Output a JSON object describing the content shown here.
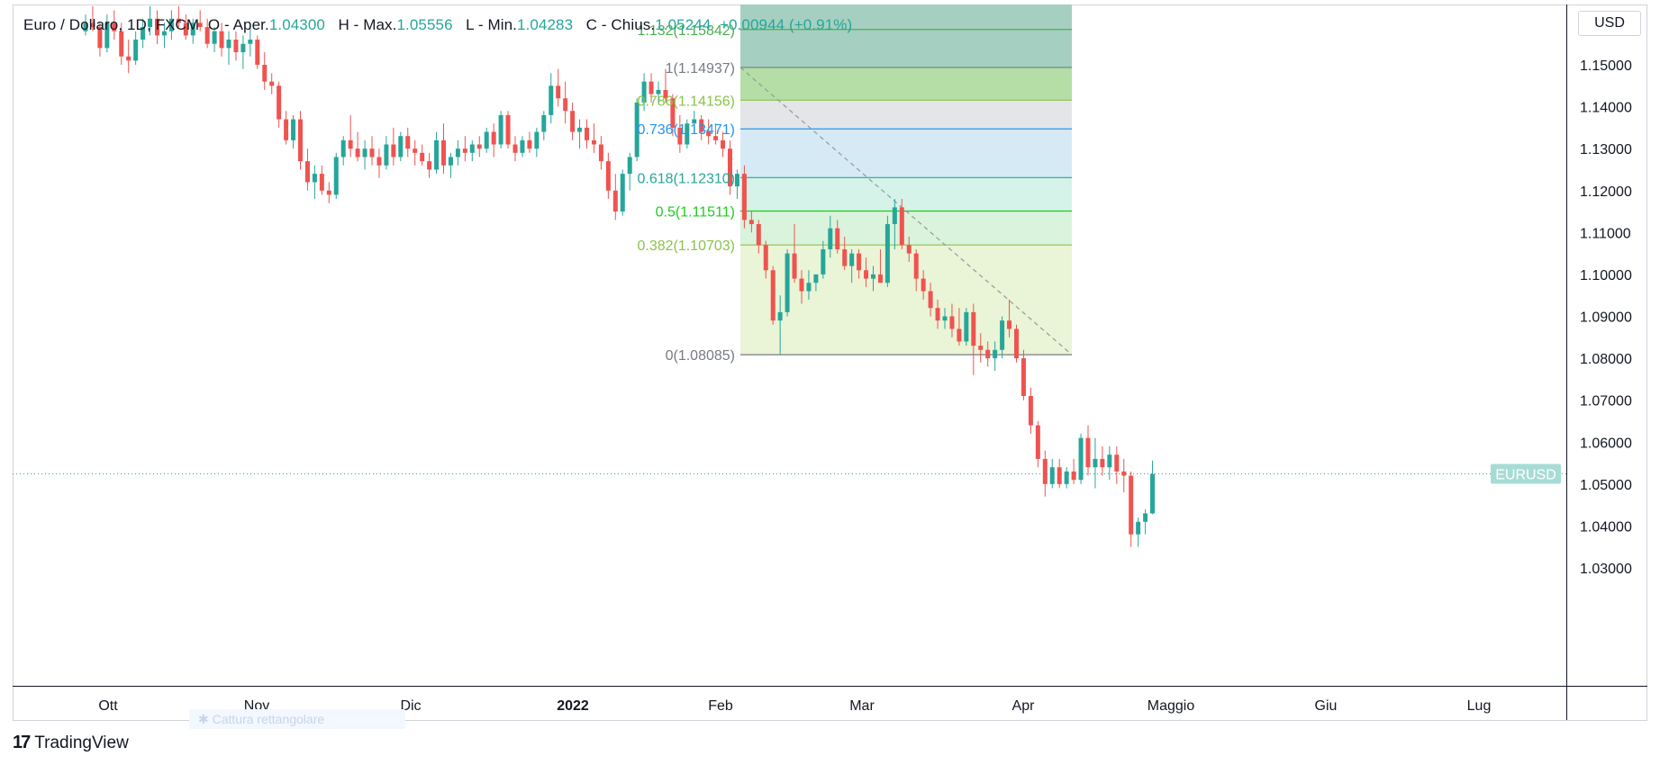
{
  "legend": {
    "symbol": "Euro / Dollaro",
    "interval": "1D",
    "exchange": "FXCM",
    "open_label": "O - Aper.",
    "open": "1.04300",
    "high_label": "H - Max.",
    "high": "1.05556",
    "low_label": "L - Min.",
    "low": "1.04283",
    "close_label": "C - Chius.",
    "close": "1.05244",
    "change": "+0.00944 (+0.91%)"
  },
  "currency_button": "USD",
  "price_tag": "EURUSD",
  "watermark": "Cattura rettangolare",
  "brand": "TradingView",
  "chart_data": {
    "type": "candlestick",
    "symbol": "EURUSD",
    "ylim": [
      1.025,
      1.162
    ],
    "yticks": [
      "1.15000",
      "1.14000",
      "1.13000",
      "1.12000",
      "1.11000",
      "1.10000",
      "1.09000",
      "1.08000",
      "1.07000",
      "1.06000",
      "1.05000",
      "1.04000",
      "1.03000"
    ],
    "xticks": [
      "Ott",
      "Nov",
      "Dic",
      "2022",
      "Feb",
      "Mar",
      "Apr",
      "Maggio",
      "Giu",
      "Lug"
    ],
    "last_price": 1.05244,
    "fibonacci": {
      "levels": [
        {
          "ratio": "1.132",
          "price": 1.15842,
          "label": "1.132(1.15842)",
          "color": "#4caf50",
          "fill": "#a5cfc0"
        },
        {
          "ratio": "1",
          "price": 1.14937,
          "label": "1(1.14937)",
          "color": "#787b86",
          "fill": "#b4dea5"
        },
        {
          "ratio": "0.786",
          "price": 1.14156,
          "label": "0.786(1.14156)",
          "color": "#8bc34a",
          "fill": "#e4e5e8"
        },
        {
          "ratio": "0.736",
          "price": 1.13471,
          "label": "0.736(1.13471)",
          "color": "#2196f3",
          "fill": "#d6eaf6"
        },
        {
          "ratio": "0.618",
          "price": 1.1231,
          "label": "0.618(1.12310)",
          "color": "#26a69a",
          "fill": "#d5f3e8"
        },
        {
          "ratio": "0.5",
          "price": 1.11511,
          "label": "0.5(1.11511)",
          "color": "#1ecc1e",
          "fill": "#daf3dc"
        },
        {
          "ratio": "0.382",
          "price": 1.10703,
          "label": "0.382(1.10703)",
          "color": "#8bc34a",
          "fill": "#eaf4d6"
        },
        {
          "ratio": "0",
          "price": 1.08085,
          "label": "0(1.08085)",
          "color": "#787b86",
          "fill": null
        }
      ]
    },
    "candles": [
      [
        1.158,
        1.162,
        1.157,
        1.16
      ],
      [
        1.16,
        1.164,
        1.158,
        1.159
      ],
      [
        1.159,
        1.16,
        1.152,
        1.154
      ],
      [
        1.154,
        1.162,
        1.153,
        1.16
      ],
      [
        1.16,
        1.163,
        1.156,
        1.158
      ],
      [
        1.158,
        1.16,
        1.15,
        1.152
      ],
      [
        1.152,
        1.156,
        1.148,
        1.151
      ],
      [
        1.151,
        1.158,
        1.15,
        1.156
      ],
      [
        1.156,
        1.161,
        1.154,
        1.159
      ],
      [
        1.159,
        1.164,
        1.157,
        1.161
      ],
      [
        1.161,
        1.163,
        1.155,
        1.157
      ],
      [
        1.157,
        1.16,
        1.154,
        1.158
      ],
      [
        1.158,
        1.163,
        1.156,
        1.161
      ],
      [
        1.161,
        1.164,
        1.159,
        1.16
      ],
      [
        1.16,
        1.162,
        1.156,
        1.157
      ],
      [
        1.157,
        1.161,
        1.155,
        1.16
      ],
      [
        1.16,
        1.163,
        1.158,
        1.159
      ],
      [
        1.159,
        1.161,
        1.154,
        1.155
      ],
      [
        1.155,
        1.159,
        1.153,
        1.158
      ],
      [
        1.158,
        1.16,
        1.152,
        1.154
      ],
      [
        1.154,
        1.158,
        1.15,
        1.156
      ],
      [
        1.156,
        1.158,
        1.151,
        1.153
      ],
      [
        1.153,
        1.157,
        1.149,
        1.155
      ],
      [
        1.155,
        1.159,
        1.152,
        1.156
      ],
      [
        1.156,
        1.157,
        1.149,
        1.15
      ],
      [
        1.15,
        1.153,
        1.144,
        1.146
      ],
      [
        1.146,
        1.148,
        1.143,
        1.145
      ],
      [
        1.145,
        1.146,
        1.135,
        1.137
      ],
      [
        1.137,
        1.139,
        1.131,
        1.132
      ],
      [
        1.132,
        1.138,
        1.13,
        1.137
      ],
      [
        1.137,
        1.139,
        1.125,
        1.127
      ],
      [
        1.127,
        1.13,
        1.12,
        1.122
      ],
      [
        1.122,
        1.126,
        1.118,
        1.124
      ],
      [
        1.124,
        1.126,
        1.119,
        1.12
      ],
      [
        1.12,
        1.122,
        1.117,
        1.119
      ],
      [
        1.119,
        1.129,
        1.118,
        1.128
      ],
      [
        1.128,
        1.133,
        1.126,
        1.132
      ],
      [
        1.132,
        1.138,
        1.128,
        1.13
      ],
      [
        1.13,
        1.134,
        1.127,
        1.128
      ],
      [
        1.128,
        1.132,
        1.125,
        1.13
      ],
      [
        1.13,
        1.133,
        1.126,
        1.128
      ],
      [
        1.128,
        1.13,
        1.123,
        1.126
      ],
      [
        1.126,
        1.133,
        1.125,
        1.131
      ],
      [
        1.131,
        1.135,
        1.126,
        1.128
      ],
      [
        1.128,
        1.134,
        1.127,
        1.133
      ],
      [
        1.133,
        1.135,
        1.128,
        1.13
      ],
      [
        1.13,
        1.132,
        1.126,
        1.129
      ],
      [
        1.129,
        1.131,
        1.126,
        1.127
      ],
      [
        1.127,
        1.129,
        1.123,
        1.125
      ],
      [
        1.125,
        1.134,
        1.124,
        1.132
      ],
      [
        1.132,
        1.136,
        1.124,
        1.126
      ],
      [
        1.126,
        1.129,
        1.123,
        1.128
      ],
      [
        1.128,
        1.132,
        1.126,
        1.13
      ],
      [
        1.13,
        1.133,
        1.127,
        1.129
      ],
      [
        1.129,
        1.132,
        1.127,
        1.131
      ],
      [
        1.131,
        1.133,
        1.128,
        1.13
      ],
      [
        1.13,
        1.135,
        1.129,
        1.134
      ],
      [
        1.134,
        1.136,
        1.128,
        1.131
      ],
      [
        1.131,
        1.139,
        1.13,
        1.138
      ],
      [
        1.138,
        1.139,
        1.13,
        1.131
      ],
      [
        1.131,
        1.133,
        1.127,
        1.129
      ],
      [
        1.129,
        1.133,
        1.128,
        1.132
      ],
      [
        1.132,
        1.134,
        1.129,
        1.13
      ],
      [
        1.13,
        1.135,
        1.128,
        1.134
      ],
      [
        1.134,
        1.139,
        1.132,
        1.138
      ],
      [
        1.138,
        1.148,
        1.136,
        1.145
      ],
      [
        1.145,
        1.149,
        1.14,
        1.142
      ],
      [
        1.142,
        1.146,
        1.136,
        1.139
      ],
      [
        1.139,
        1.141,
        1.132,
        1.134
      ],
      [
        1.134,
        1.137,
        1.13,
        1.135
      ],
      [
        1.135,
        1.137,
        1.13,
        1.132
      ],
      [
        1.132,
        1.136,
        1.129,
        1.131
      ],
      [
        1.131,
        1.133,
        1.125,
        1.127
      ],
      [
        1.127,
        1.129,
        1.118,
        1.12
      ],
      [
        1.12,
        1.124,
        1.113,
        1.115
      ],
      [
        1.115,
        1.125,
        1.114,
        1.124
      ],
      [
        1.124,
        1.129,
        1.12,
        1.128
      ],
      [
        1.128,
        1.142,
        1.127,
        1.141
      ],
      [
        1.141,
        1.148,
        1.139,
        1.146
      ],
      [
        1.146,
        1.148,
        1.141,
        1.143
      ],
      [
        1.143,
        1.146,
        1.141,
        1.144
      ],
      [
        1.144,
        1.149,
        1.141,
        1.142
      ],
      [
        1.142,
        1.143,
        1.133,
        1.135
      ],
      [
        1.135,
        1.138,
        1.129,
        1.131
      ],
      [
        1.131,
        1.137,
        1.13,
        1.136
      ],
      [
        1.136,
        1.139,
        1.134,
        1.137
      ],
      [
        1.137,
        1.138,
        1.132,
        1.134
      ],
      [
        1.134,
        1.137,
        1.131,
        1.133
      ],
      [
        1.133,
        1.136,
        1.131,
        1.132
      ],
      [
        1.132,
        1.134,
        1.128,
        1.13
      ],
      [
        1.13,
        1.132,
        1.119,
        1.121
      ],
      [
        1.121,
        1.125,
        1.118,
        1.124
      ],
      [
        1.124,
        1.126,
        1.111,
        1.113
      ],
      [
        1.113,
        1.115,
        1.11,
        1.112
      ],
      [
        1.112,
        1.113,
        1.105,
        1.107
      ],
      [
        1.107,
        1.108,
        1.099,
        1.101
      ],
      [
        1.101,
        1.102,
        1.088,
        1.089
      ],
      [
        1.089,
        1.095,
        1.081,
        1.091
      ],
      [
        1.091,
        1.106,
        1.09,
        1.105
      ],
      [
        1.105,
        1.112,
        1.098,
        1.099
      ],
      [
        1.099,
        1.101,
        1.093,
        1.096
      ],
      [
        1.096,
        1.101,
        1.094,
        1.098
      ],
      [
        1.098,
        1.1,
        1.096,
        1.1
      ],
      [
        1.1,
        1.108,
        1.099,
        1.106
      ],
      [
        1.106,
        1.114,
        1.104,
        1.111
      ],
      [
        1.111,
        1.113,
        1.105,
        1.106
      ],
      [
        1.106,
        1.109,
        1.101,
        1.102
      ],
      [
        1.102,
        1.106,
        1.098,
        1.105
      ],
      [
        1.105,
        1.106,
        1.099,
        1.101
      ],
      [
        1.101,
        1.104,
        1.097,
        1.099
      ],
      [
        1.099,
        1.102,
        1.096,
        1.1
      ],
      [
        1.1,
        1.106,
        1.098,
        1.098
      ],
      [
        1.098,
        1.114,
        1.097,
        1.112
      ],
      [
        1.112,
        1.118,
        1.106,
        1.116
      ],
      [
        1.116,
        1.118,
        1.106,
        1.107
      ],
      [
        1.107,
        1.109,
        1.103,
        1.105
      ],
      [
        1.105,
        1.106,
        1.096,
        1.099
      ],
      [
        1.099,
        1.101,
        1.094,
        1.096
      ],
      [
        1.096,
        1.098,
        1.09,
        1.092
      ],
      [
        1.092,
        1.094,
        1.087,
        1.089
      ],
      [
        1.089,
        1.092,
        1.087,
        1.09
      ],
      [
        1.09,
        1.093,
        1.085,
        1.087
      ],
      [
        1.087,
        1.092,
        1.083,
        1.084
      ],
      [
        1.084,
        1.092,
        1.083,
        1.091
      ],
      [
        1.091,
        1.093,
        1.076,
        1.083
      ],
      [
        1.083,
        1.086,
        1.079,
        1.082
      ],
      [
        1.082,
        1.084,
        1.078,
        1.08
      ],
      [
        1.08,
        1.084,
        1.077,
        1.082
      ],
      [
        1.082,
        1.09,
        1.08,
        1.089
      ],
      [
        1.089,
        1.094,
        1.085,
        1.087
      ],
      [
        1.087,
        1.088,
        1.079,
        1.08
      ],
      [
        1.08,
        1.082,
        1.07,
        1.071
      ],
      [
        1.071,
        1.073,
        1.062,
        1.064
      ],
      [
        1.064,
        1.065,
        1.054,
        1.056
      ],
      [
        1.056,
        1.058,
        1.047,
        1.05
      ],
      [
        1.05,
        1.056,
        1.049,
        1.054
      ],
      [
        1.054,
        1.056,
        1.049,
        1.05
      ],
      [
        1.05,
        1.054,
        1.049,
        1.053
      ],
      [
        1.053,
        1.056,
        1.05,
        1.051
      ],
      [
        1.051,
        1.062,
        1.05,
        1.061
      ],
      [
        1.061,
        1.064,
        1.052,
        1.054
      ],
      [
        1.054,
        1.061,
        1.049,
        1.056
      ],
      [
        1.056,
        1.059,
        1.052,
        1.054
      ],
      [
        1.054,
        1.059,
        1.051,
        1.057
      ],
      [
        1.057,
        1.059,
        1.05,
        1.053
      ],
      [
        1.053,
        1.056,
        1.048,
        1.052
      ],
      [
        1.052,
        1.053,
        1.035,
        1.038
      ],
      [
        1.038,
        1.042,
        1.035,
        1.041
      ],
      [
        1.041,
        1.044,
        1.038,
        1.043
      ],
      [
        1.043,
        1.0556,
        1.0428,
        1.0524
      ]
    ]
  }
}
